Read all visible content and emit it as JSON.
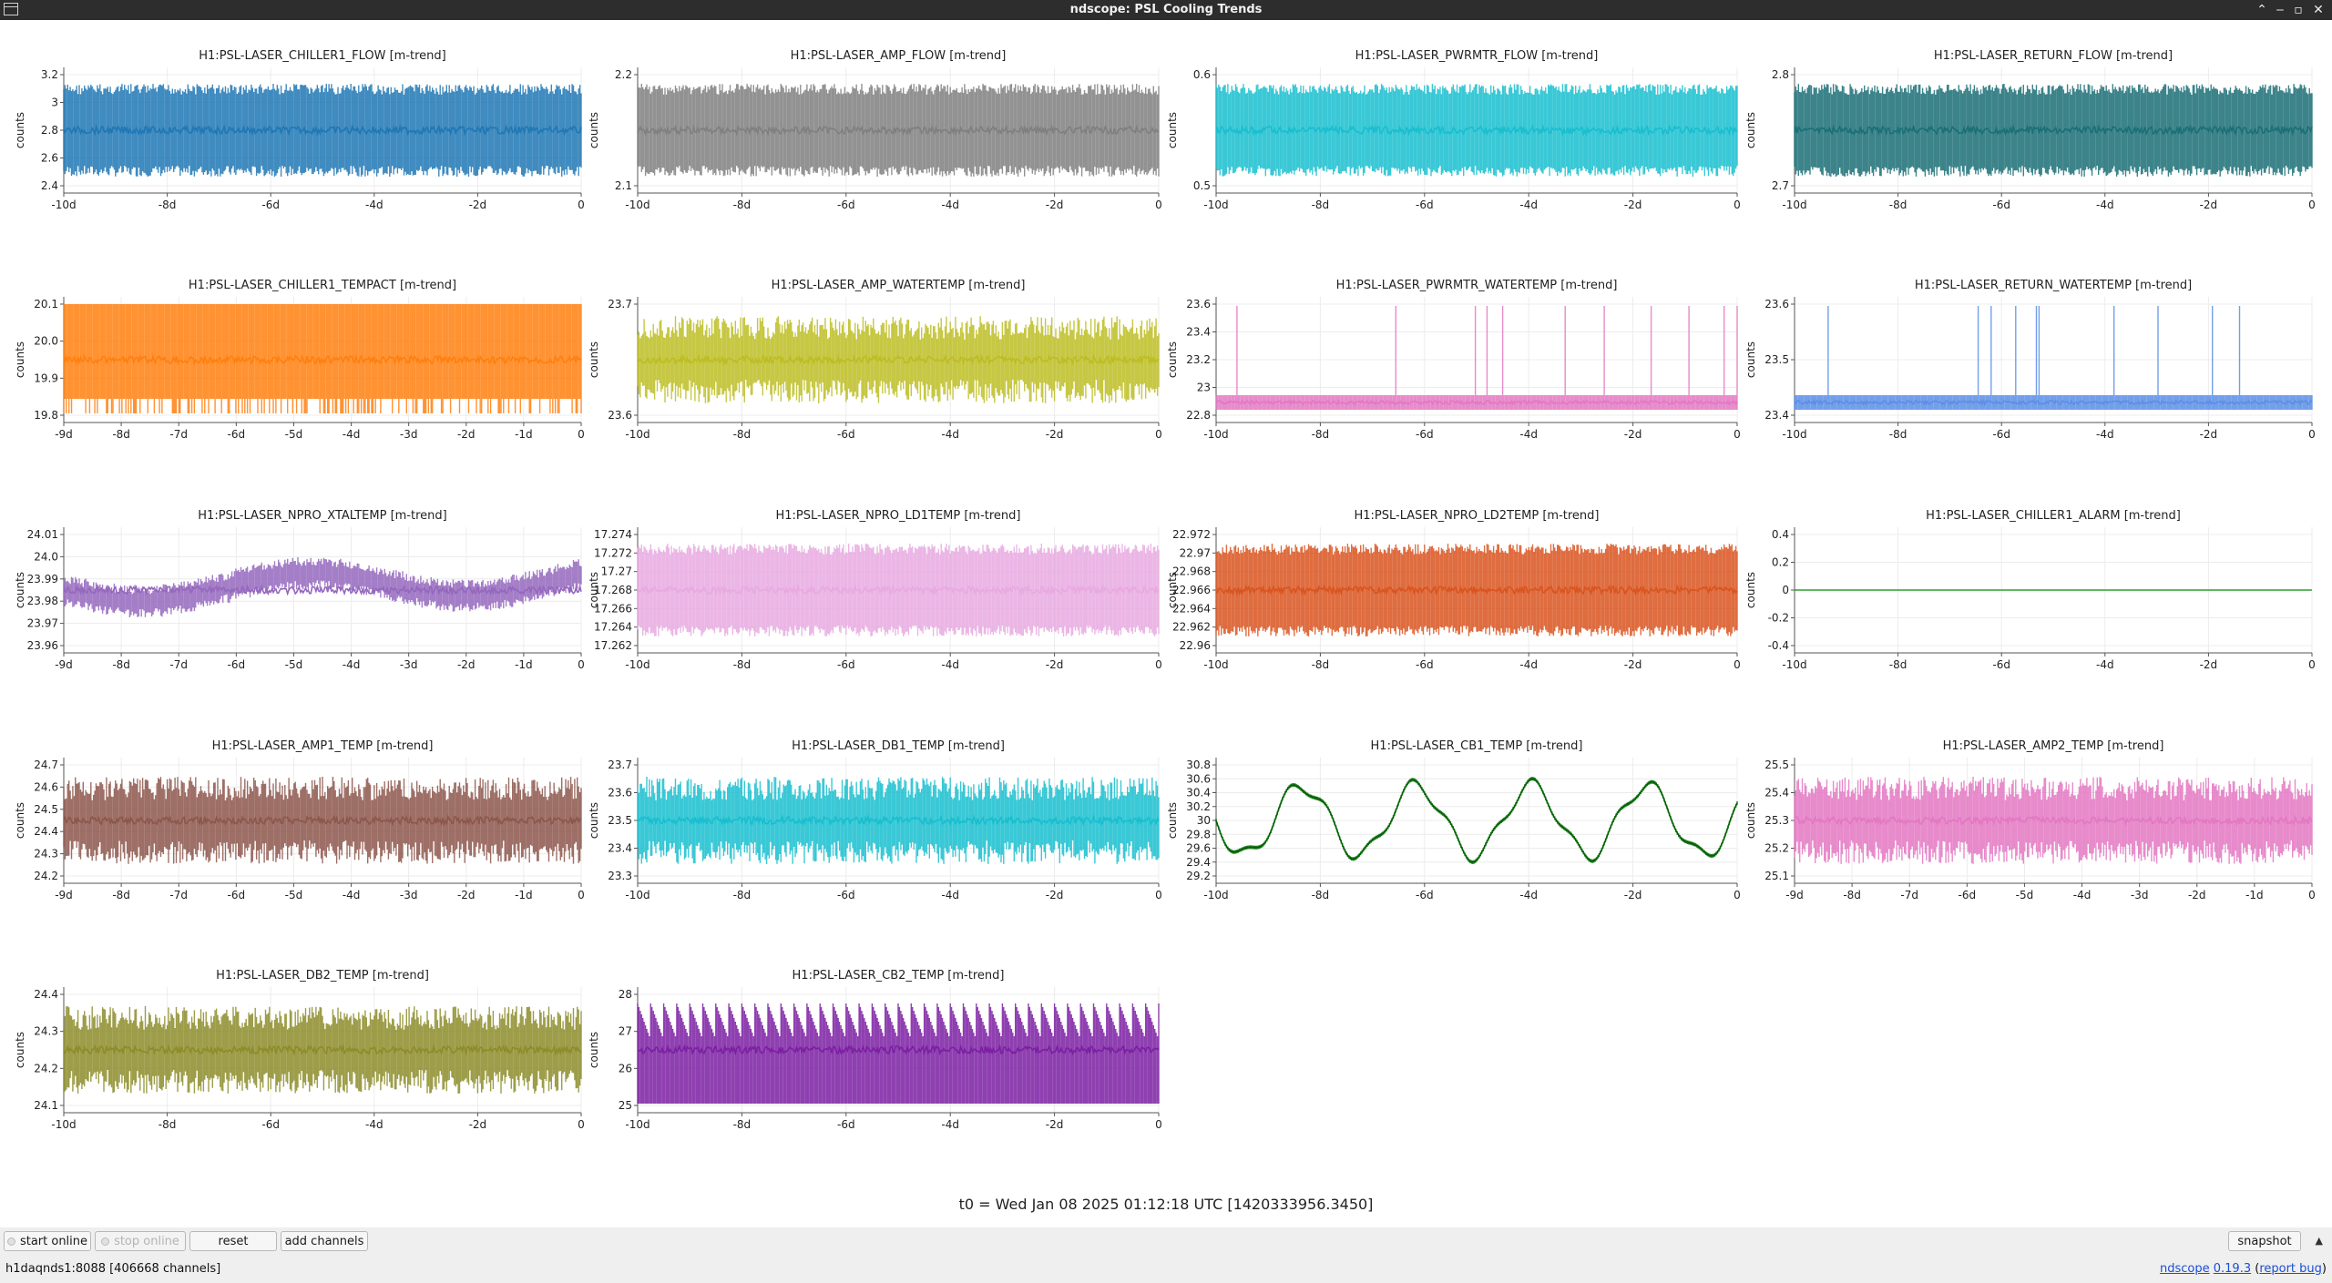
{
  "window": {
    "title": "ndscope: PSL Cooling Trends"
  },
  "t0_label": "t0 = Wed Jan 08 2025 01:12:18 UTC [1420333956.3450]",
  "buttons": {
    "start_online": "start online",
    "stop_online": "stop online",
    "reset": "reset",
    "add_channels": "add channels",
    "snapshot": "snapshot"
  },
  "status": {
    "server": "h1daqnds1:8088 [406668 channels]",
    "app_name": "ndscope",
    "version": "0.19.3",
    "paren_open": "(",
    "report_bug": "report bug",
    "paren_close": ")"
  },
  "plots": [
    {
      "title": "H1:PSL-LASER_CHILLER1_FLOW [m-trend]",
      "ylabel": "counts",
      "color": "#1f77b4",
      "style": "band",
      "yticks": [
        "2.4",
        "2.6",
        "2.8",
        "3",
        "3.2"
      ],
      "xticks": [
        "-10d",
        "-8d",
        "-6d",
        "-4d",
        "-2d",
        "0"
      ]
    },
    {
      "title": "H1:PSL-LASER_AMP_FLOW [m-trend]",
      "ylabel": "counts",
      "color": "#7f7f7f",
      "style": "multiband",
      "yticks": [
        "2.1",
        "2.2"
      ],
      "xticks": [
        "-10d",
        "-8d",
        "-6d",
        "-4d",
        "-2d",
        "0"
      ]
    },
    {
      "title": "H1:PSL-LASER_PWRMTR_FLOW [m-trend]",
      "ylabel": "counts",
      "color": "#17becf",
      "style": "multiband",
      "yticks": [
        "0.5",
        "0.6"
      ],
      "xticks": [
        "-10d",
        "-8d",
        "-6d",
        "-4d",
        "-2d",
        "0"
      ]
    },
    {
      "title": "H1:PSL-LASER_RETURN_FLOW [m-trend]",
      "ylabel": "counts",
      "color": "#1a6f75",
      "style": "multiband",
      "yticks": [
        "2.7",
        "2.8"
      ],
      "xticks": [
        "-10d",
        "-8d",
        "-6d",
        "-4d",
        "-2d",
        "0"
      ]
    },
    {
      "title": "H1:PSL-LASER_CHILLER1_TEMPACT [m-trend]",
      "ylabel": "counts",
      "color": "#ff7f0e",
      "style": "block",
      "yticks": [
        "19.8",
        "19.9",
        "20.0",
        "20.1"
      ],
      "xticks": [
        "-9d",
        "-8d",
        "-7d",
        "-6d",
        "-5d",
        "-4d",
        "-3d",
        "-2d",
        "-1d",
        "0"
      ]
    },
    {
      "title": "H1:PSL-LASER_AMP_WATERTEMP [m-trend]",
      "ylabel": "counts",
      "color": "#bcbd22",
      "style": "noise",
      "yticks": [
        "23.6",
        "23.7"
      ],
      "xticks": [
        "-10d",
        "-8d",
        "-6d",
        "-4d",
        "-2d",
        "0"
      ]
    },
    {
      "title": "H1:PSL-LASER_PWRMTR_WATERTEMP [m-trend]",
      "ylabel": "counts",
      "color": "#e377c2",
      "style": "spikes",
      "yticks": [
        "22.8",
        "23",
        "23.2",
        "23.4",
        "23.6"
      ],
      "xticks": [
        "-10d",
        "-8d",
        "-6d",
        "-4d",
        "-2d",
        "0"
      ]
    },
    {
      "title": "H1:PSL-LASER_RETURN_WATERTEMP [m-trend]",
      "ylabel": "counts",
      "color": "#5b8ee6",
      "style": "spikes",
      "yticks": [
        "23.4",
        "23.5",
        "23.6"
      ],
      "xticks": [
        "-10d",
        "-8d",
        "-6d",
        "-4d",
        "-2d",
        "0"
      ]
    },
    {
      "title": "H1:PSL-LASER_NPRO_XTALTEMP [m-trend]",
      "ylabel": "counts",
      "color": "#9467bd",
      "style": "wander",
      "yticks": [
        "23.96",
        "23.97",
        "23.98",
        "23.99",
        "24.0",
        "24.01"
      ],
      "xticks": [
        "-9d",
        "-8d",
        "-7d",
        "-6d",
        "-5d",
        "-4d",
        "-3d",
        "-2d",
        "-1d",
        "0"
      ]
    },
    {
      "title": "H1:PSL-LASER_NPRO_LD1TEMP [m-trend]",
      "ylabel": "counts",
      "color": "#e8a9e0",
      "style": "blocks3",
      "yticks": [
        "17.262",
        "17.264",
        "17.266",
        "17.268",
        "17.27",
        "17.272",
        "17.274"
      ],
      "xticks": [
        "-10d",
        "-8d",
        "-6d",
        "-4d",
        "-2d",
        "0"
      ]
    },
    {
      "title": "H1:PSL-LASER_NPRO_LD2TEMP [m-trend]",
      "ylabel": "counts",
      "color": "#d9541e",
      "style": "blocks3",
      "yticks": [
        "22.96",
        "22.962",
        "22.964",
        "22.966",
        "22.968",
        "22.97",
        "22.972"
      ],
      "xticks": [
        "-10d",
        "-8d",
        "-6d",
        "-4d",
        "-2d",
        "0"
      ]
    },
    {
      "title": "H1:PSL-LASER_CHILLER1_ALARM [m-trend]",
      "ylabel": "counts",
      "color": "#2ca02c",
      "style": "flat",
      "yticks": [
        "-0.4",
        "-0.2",
        "0",
        "0.2",
        "0.4"
      ],
      "xticks": [
        "-10d",
        "-8d",
        "-6d",
        "-4d",
        "-2d",
        "0"
      ]
    },
    {
      "title": "H1:PSL-LASER_AMP1_TEMP [m-trend]",
      "ylabel": "counts",
      "color": "#8c564b",
      "style": "noise",
      "yticks": [
        "24.2",
        "24.3",
        "24.4",
        "24.5",
        "24.6",
        "24.7"
      ],
      "xticks": [
        "-9d",
        "-8d",
        "-7d",
        "-6d",
        "-5d",
        "-4d",
        "-3d",
        "-2d",
        "-1d",
        "0"
      ]
    },
    {
      "title": "H1:PSL-LASER_DB1_TEMP [m-trend]",
      "ylabel": "counts",
      "color": "#17becf",
      "style": "noise",
      "yticks": [
        "23.3",
        "23.4",
        "23.5",
        "23.6",
        "23.7"
      ],
      "xticks": [
        "-10d",
        "-8d",
        "-6d",
        "-4d",
        "-2d",
        "0"
      ]
    },
    {
      "title": "H1:PSL-LASER_CB1_TEMP [m-trend]",
      "ylabel": "counts",
      "color": "#006400",
      "style": "wave",
      "yticks": [
        "29.2",
        "29.4",
        "29.6",
        "29.8",
        "30",
        "30.2",
        "30.4",
        "30.6",
        "30.8"
      ],
      "xticks": [
        "-10d",
        "-8d",
        "-6d",
        "-4d",
        "-2d",
        "0"
      ]
    },
    {
      "title": "H1:PSL-LASER_AMP2_TEMP [m-trend]",
      "ylabel": "counts",
      "color": "#e377c2",
      "style": "noise",
      "yticks": [
        "25.1",
        "25.2",
        "25.3",
        "25.4",
        "25.5"
      ],
      "xticks": [
        "-9d",
        "-8d",
        "-7d",
        "-6d",
        "-5d",
        "-4d",
        "-3d",
        "-2d",
        "-1d",
        "0"
      ]
    },
    {
      "title": "H1:PSL-LASER_DB2_TEMP [m-trend]",
      "ylabel": "counts",
      "color": "#8c8c2a",
      "style": "noise",
      "yticks": [
        "24.1",
        "24.2",
        "24.3",
        "24.4"
      ],
      "xticks": [
        "-10d",
        "-8d",
        "-6d",
        "-4d",
        "-2d",
        "0"
      ]
    },
    {
      "title": "H1:PSL-LASER_CB2_TEMP [m-trend]",
      "ylabel": "counts",
      "color": "#7b1fa2",
      "style": "sawtooth",
      "yticks": [
        "25",
        "26",
        "27",
        "28"
      ],
      "xticks": [
        "-10d",
        "-8d",
        "-6d",
        "-4d",
        "-2d",
        "0"
      ]
    }
  ]
}
